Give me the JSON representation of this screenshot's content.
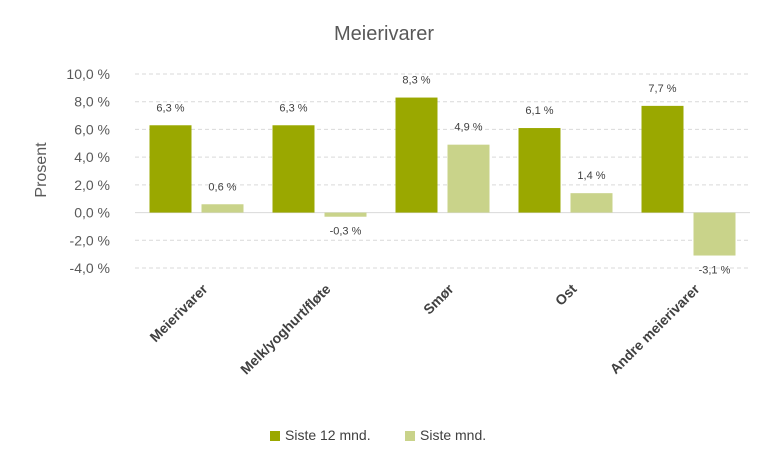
{
  "chart_data": {
    "type": "bar",
    "title": "Meierivarer",
    "ylabel": "Prosent",
    "xlabel": "",
    "categories": [
      "Meierivarer",
      "Melk/yoghurt/fløte",
      "Smør",
      "Ost",
      "Andre meierivarer"
    ],
    "series": [
      {
        "name": "Siste 12 mnd.",
        "color": "#9aa800",
        "values": [
          6.3,
          6.3,
          8.3,
          6.1,
          7.7
        ],
        "labels": [
          "6,3 %",
          "6,3 %",
          "8,3 %",
          "6,1 %",
          "7,7 %"
        ]
      },
      {
        "name": "Siste mnd.",
        "color": "#c9d38a",
        "values": [
          0.6,
          -0.3,
          4.9,
          1.4,
          -3.1
        ],
        "labels": [
          "0,6 %",
          "-0,3 %",
          "4,9 %",
          "1,4 %",
          "-3,1 %"
        ]
      }
    ],
    "ylim": [
      -4,
      10
    ],
    "yticks": [
      -4,
      -2,
      0,
      2,
      4,
      6,
      8,
      10
    ],
    "ytick_labels": [
      "-4,0 %",
      "-2,0 %",
      "0,0 %",
      "2,0 %",
      "4,0 %",
      "6,0 %",
      "8,0 %",
      "10,0 %"
    ],
    "grid": true,
    "legend_position": "bottom"
  }
}
